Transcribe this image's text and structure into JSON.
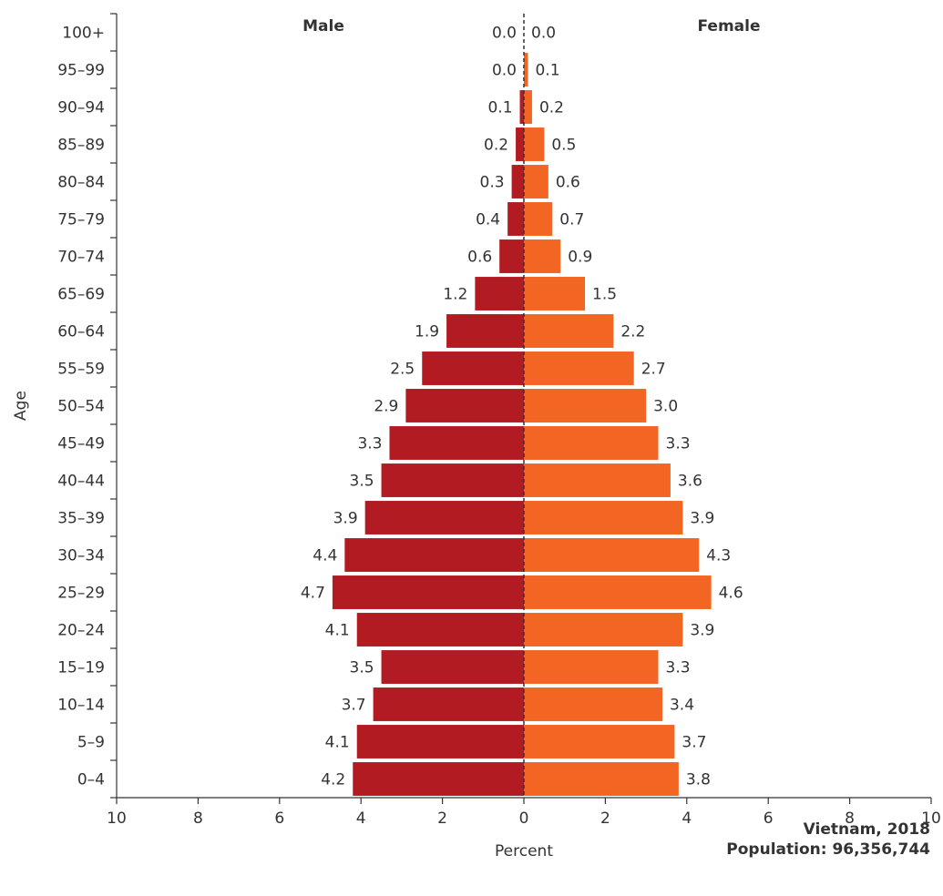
{
  "chart_data": {
    "type": "bar",
    "orientation": "horizontal",
    "layout": "population-pyramid",
    "categories": [
      "0–4",
      "5–9",
      "10–14",
      "15–19",
      "20–24",
      "25–29",
      "30–34",
      "35–39",
      "40–44",
      "45–49",
      "50–54",
      "55–59",
      "60–64",
      "65–69",
      "70–74",
      "75–79",
      "80–84",
      "85–89",
      "90–94",
      "95–99",
      "100+"
    ],
    "series": [
      {
        "name": "Male",
        "color": "#b31b22",
        "values": [
          4.2,
          4.1,
          3.7,
          3.5,
          4.1,
          4.7,
          4.4,
          3.9,
          3.5,
          3.3,
          2.9,
          2.5,
          1.9,
          1.2,
          0.6,
          0.4,
          0.3,
          0.2,
          0.1,
          0.0,
          0.0
        ],
        "labels": [
          "4.2",
          "4.1",
          "3.7",
          "3.5",
          "4.1",
          "4.7",
          "4.4",
          "3.9",
          "3.5",
          "3.3",
          "2.9",
          "2.5",
          "1.9",
          "1.2",
          "0.6",
          "0.4",
          "0.3",
          "0.2",
          "0.1",
          "0.0",
          "0.0"
        ]
      },
      {
        "name": "Female",
        "color": "#f26522",
        "values": [
          3.8,
          3.7,
          3.4,
          3.3,
          3.9,
          4.6,
          4.3,
          3.9,
          3.6,
          3.3,
          3.0,
          2.7,
          2.2,
          1.5,
          0.9,
          0.7,
          0.6,
          0.5,
          0.2,
          0.1,
          0.0
        ],
        "labels": [
          "3.8",
          "3.7",
          "3.4",
          "3.3",
          "3.9",
          "4.6",
          "4.3",
          "3.9",
          "3.6",
          "3.3",
          "3.0",
          "2.7",
          "2.2",
          "1.5",
          "0.9",
          "0.7",
          "0.6",
          "0.5",
          "0.2",
          "0.1",
          "0.0"
        ]
      }
    ],
    "xlabel": "Percent",
    "ylabel": "Age",
    "xlim": [
      -10,
      10
    ],
    "xticks": [
      "10",
      "8",
      "6",
      "4",
      "2",
      "0",
      "2",
      "4",
      "6",
      "8",
      "10"
    ],
    "grid": false
  },
  "footer": {
    "line1": "Vietnam, 2018",
    "line2": "Population: 96,356,744"
  }
}
